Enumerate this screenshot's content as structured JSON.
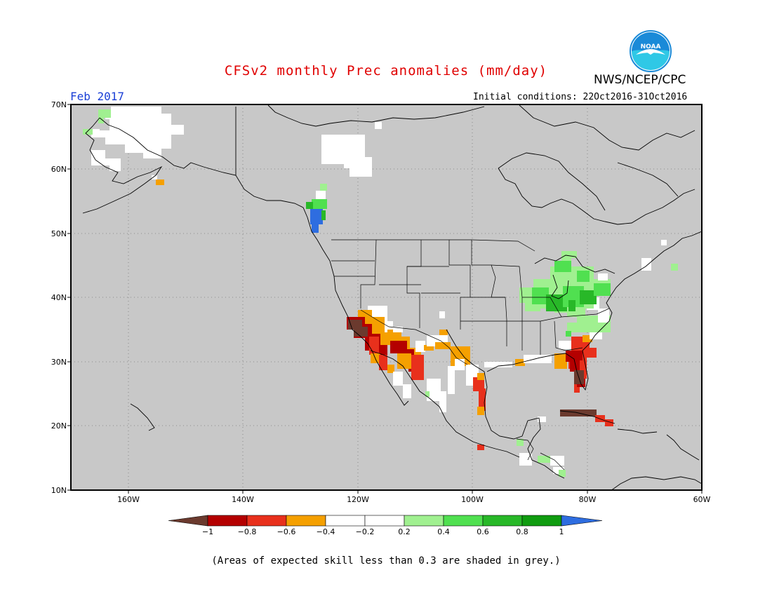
{
  "header": {
    "title": "CFSv2 monthly Prec anomalies (mm/day)",
    "organization": "NWS/NCEP/CPC",
    "logo_text": "NOAA",
    "month": "Feb 2017",
    "initial_conditions": "Initial conditions: 22Oct2016-31Oct2016"
  },
  "map": {
    "background_color": "#c8c8c8",
    "lat_labels": [
      "70N",
      "60N",
      "50N",
      "40N",
      "30N",
      "20N",
      "10N"
    ],
    "lon_labels": [
      "160W",
      "140W",
      "120W",
      "100W",
      "80W",
      "60W"
    ]
  },
  "legend": {
    "labels": [
      "-1",
      "-0.8",
      "-0.6",
      "-0.4",
      "-0.2",
      "0.2",
      "0.4",
      "0.6",
      "0.8",
      "1"
    ],
    "colors": [
      "#6b3a2e",
      "#b40000",
      "#e8301c",
      "#f5a000",
      "#ffffff",
      "#a0f090",
      "#50e050",
      "#28b828",
      "#109c10",
      "#2e6de0"
    ],
    "below_color": "#6b3a2e",
    "above_color": "#2e6de0"
  },
  "footnote": "(Areas of expected skill less than 0.3 are shaded in grey.)"
}
